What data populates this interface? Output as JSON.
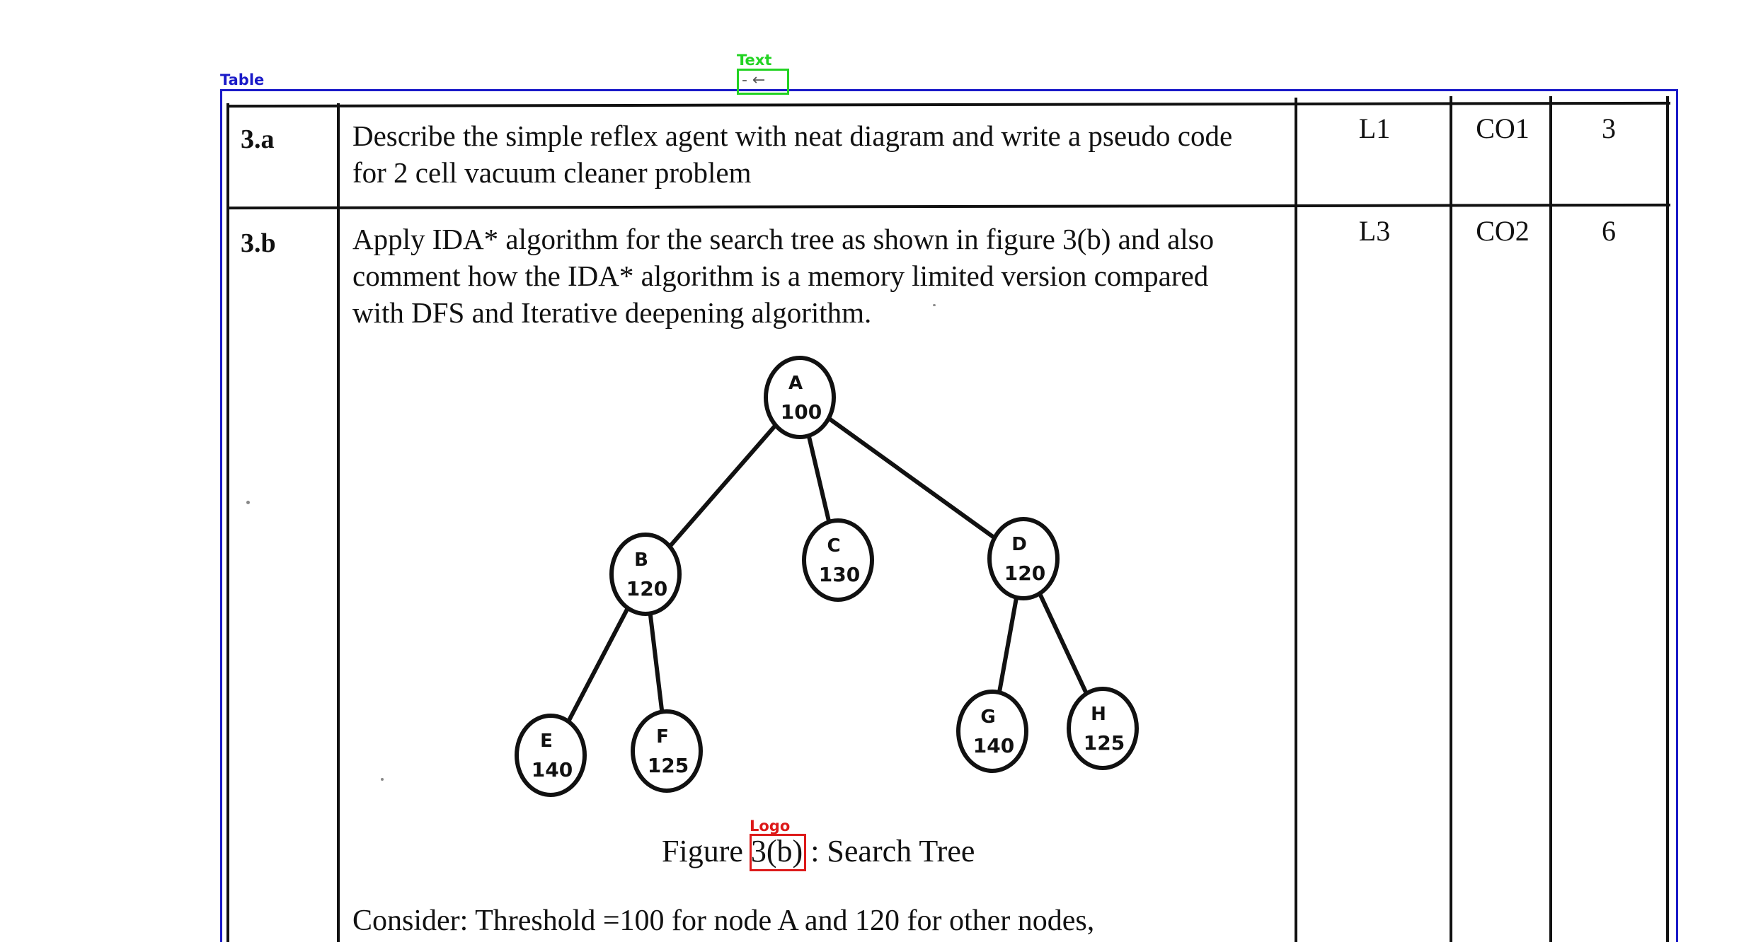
{
  "overlays": {
    "table_label": "Table",
    "text_label": "Text",
    "logo_label": "Logo",
    "text_content": "- ←"
  },
  "rows": [
    {
      "number": "3.a",
      "lines": [
        "Describe the simple reflex agent with neat diagram and write a pseudo code",
        "for 2 cell vacuum cleaner problem"
      ],
      "level": "L1",
      "course_outcome": "CO1",
      "marks": "3"
    },
    {
      "number": "3.b",
      "lines": [
        "Apply IDA* algorithm for the search tree as shown in figure 3(b) and also",
        "comment how the IDA* algorithm is a memory limited version compared",
        "with DFS and Iterative deepening algorithm."
      ],
      "level": "L3",
      "course_outcome": "CO2",
      "marks": "6"
    }
  ],
  "tree": {
    "nodes": [
      {
        "id": "A",
        "label": "A",
        "value": "100"
      },
      {
        "id": "B",
        "label": "B",
        "value": "120"
      },
      {
        "id": "C",
        "label": "C",
        "value": "130"
      },
      {
        "id": "D",
        "label": "D",
        "value": "120"
      },
      {
        "id": "E",
        "label": "E",
        "value": "140"
      },
      {
        "id": "F",
        "label": "F",
        "value": "125"
      },
      {
        "id": "G",
        "label": "G",
        "value": "140"
      },
      {
        "id": "H",
        "label": "H",
        "value": "125"
      }
    ],
    "edges": [
      [
        "A",
        "B"
      ],
      [
        "A",
        "C"
      ],
      [
        "A",
        "D"
      ],
      [
        "B",
        "E"
      ],
      [
        "B",
        "F"
      ],
      [
        "D",
        "G"
      ],
      [
        "D",
        "H"
      ]
    ]
  },
  "figure": {
    "caption_prefix": "Figure",
    "caption_ref": "3(b)",
    "caption_suffix": ": Search Tree"
  },
  "consider_text": "Consider: Threshold =100 for node A and 120 for other nodes,"
}
